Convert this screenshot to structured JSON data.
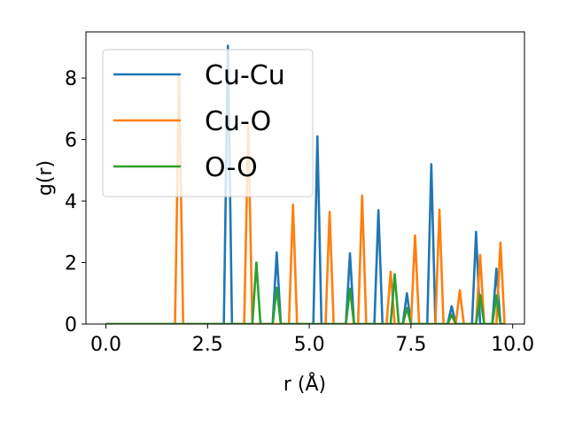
{
  "chart_data": {
    "type": "line",
    "title": "",
    "xlabel": "r (Å)",
    "ylabel": "g(r)",
    "xlim": [
      -0.49,
      10.29
    ],
    "ylim": [
      0,
      9.5
    ],
    "xticks": [
      0.0,
      2.5,
      5.0,
      7.5,
      10.0
    ],
    "xtick_labels": [
      "0.0",
      "2.5",
      "5.0",
      "7.5",
      "10.0"
    ],
    "yticks": [
      0,
      2,
      4,
      6,
      8
    ],
    "ytick_labels": [
      "0",
      "2",
      "4",
      "6",
      "8"
    ],
    "grid": false,
    "legend": "upper-left",
    "series": [
      {
        "name": "Cu-Cu",
        "color": "#1f77b4",
        "peaks": [
          [
            3.0,
            9.05
          ],
          [
            4.2,
            2.33
          ],
          [
            5.2,
            6.1
          ],
          [
            6.0,
            2.3
          ],
          [
            6.7,
            3.7
          ],
          [
            7.4,
            1.0
          ],
          [
            8.0,
            5.2
          ],
          [
            8.5,
            0.58
          ],
          [
            9.1,
            3.0
          ],
          [
            9.6,
            1.8
          ]
        ]
      },
      {
        "name": "Cu-O",
        "color": "#ff7f0e",
        "peaks": [
          [
            1.8,
            8.1
          ],
          [
            3.5,
            6.5
          ],
          [
            4.6,
            3.88
          ],
          [
            5.5,
            3.65
          ],
          [
            6.3,
            4.18
          ],
          [
            7.0,
            1.7
          ],
          [
            7.6,
            2.88
          ],
          [
            8.2,
            3.72
          ],
          [
            8.7,
            1.1
          ],
          [
            9.2,
            2.25
          ],
          [
            9.7,
            2.65
          ]
        ]
      },
      {
        "name": "O-O",
        "color": "#2ca02c",
        "peaks": [
          [
            3.7,
            2.0
          ],
          [
            4.2,
            1.18
          ],
          [
            6.0,
            1.15
          ],
          [
            7.1,
            1.62
          ],
          [
            7.4,
            0.52
          ],
          [
            8.5,
            0.3
          ],
          [
            9.2,
            0.95
          ],
          [
            9.6,
            0.93
          ]
        ]
      }
    ]
  }
}
